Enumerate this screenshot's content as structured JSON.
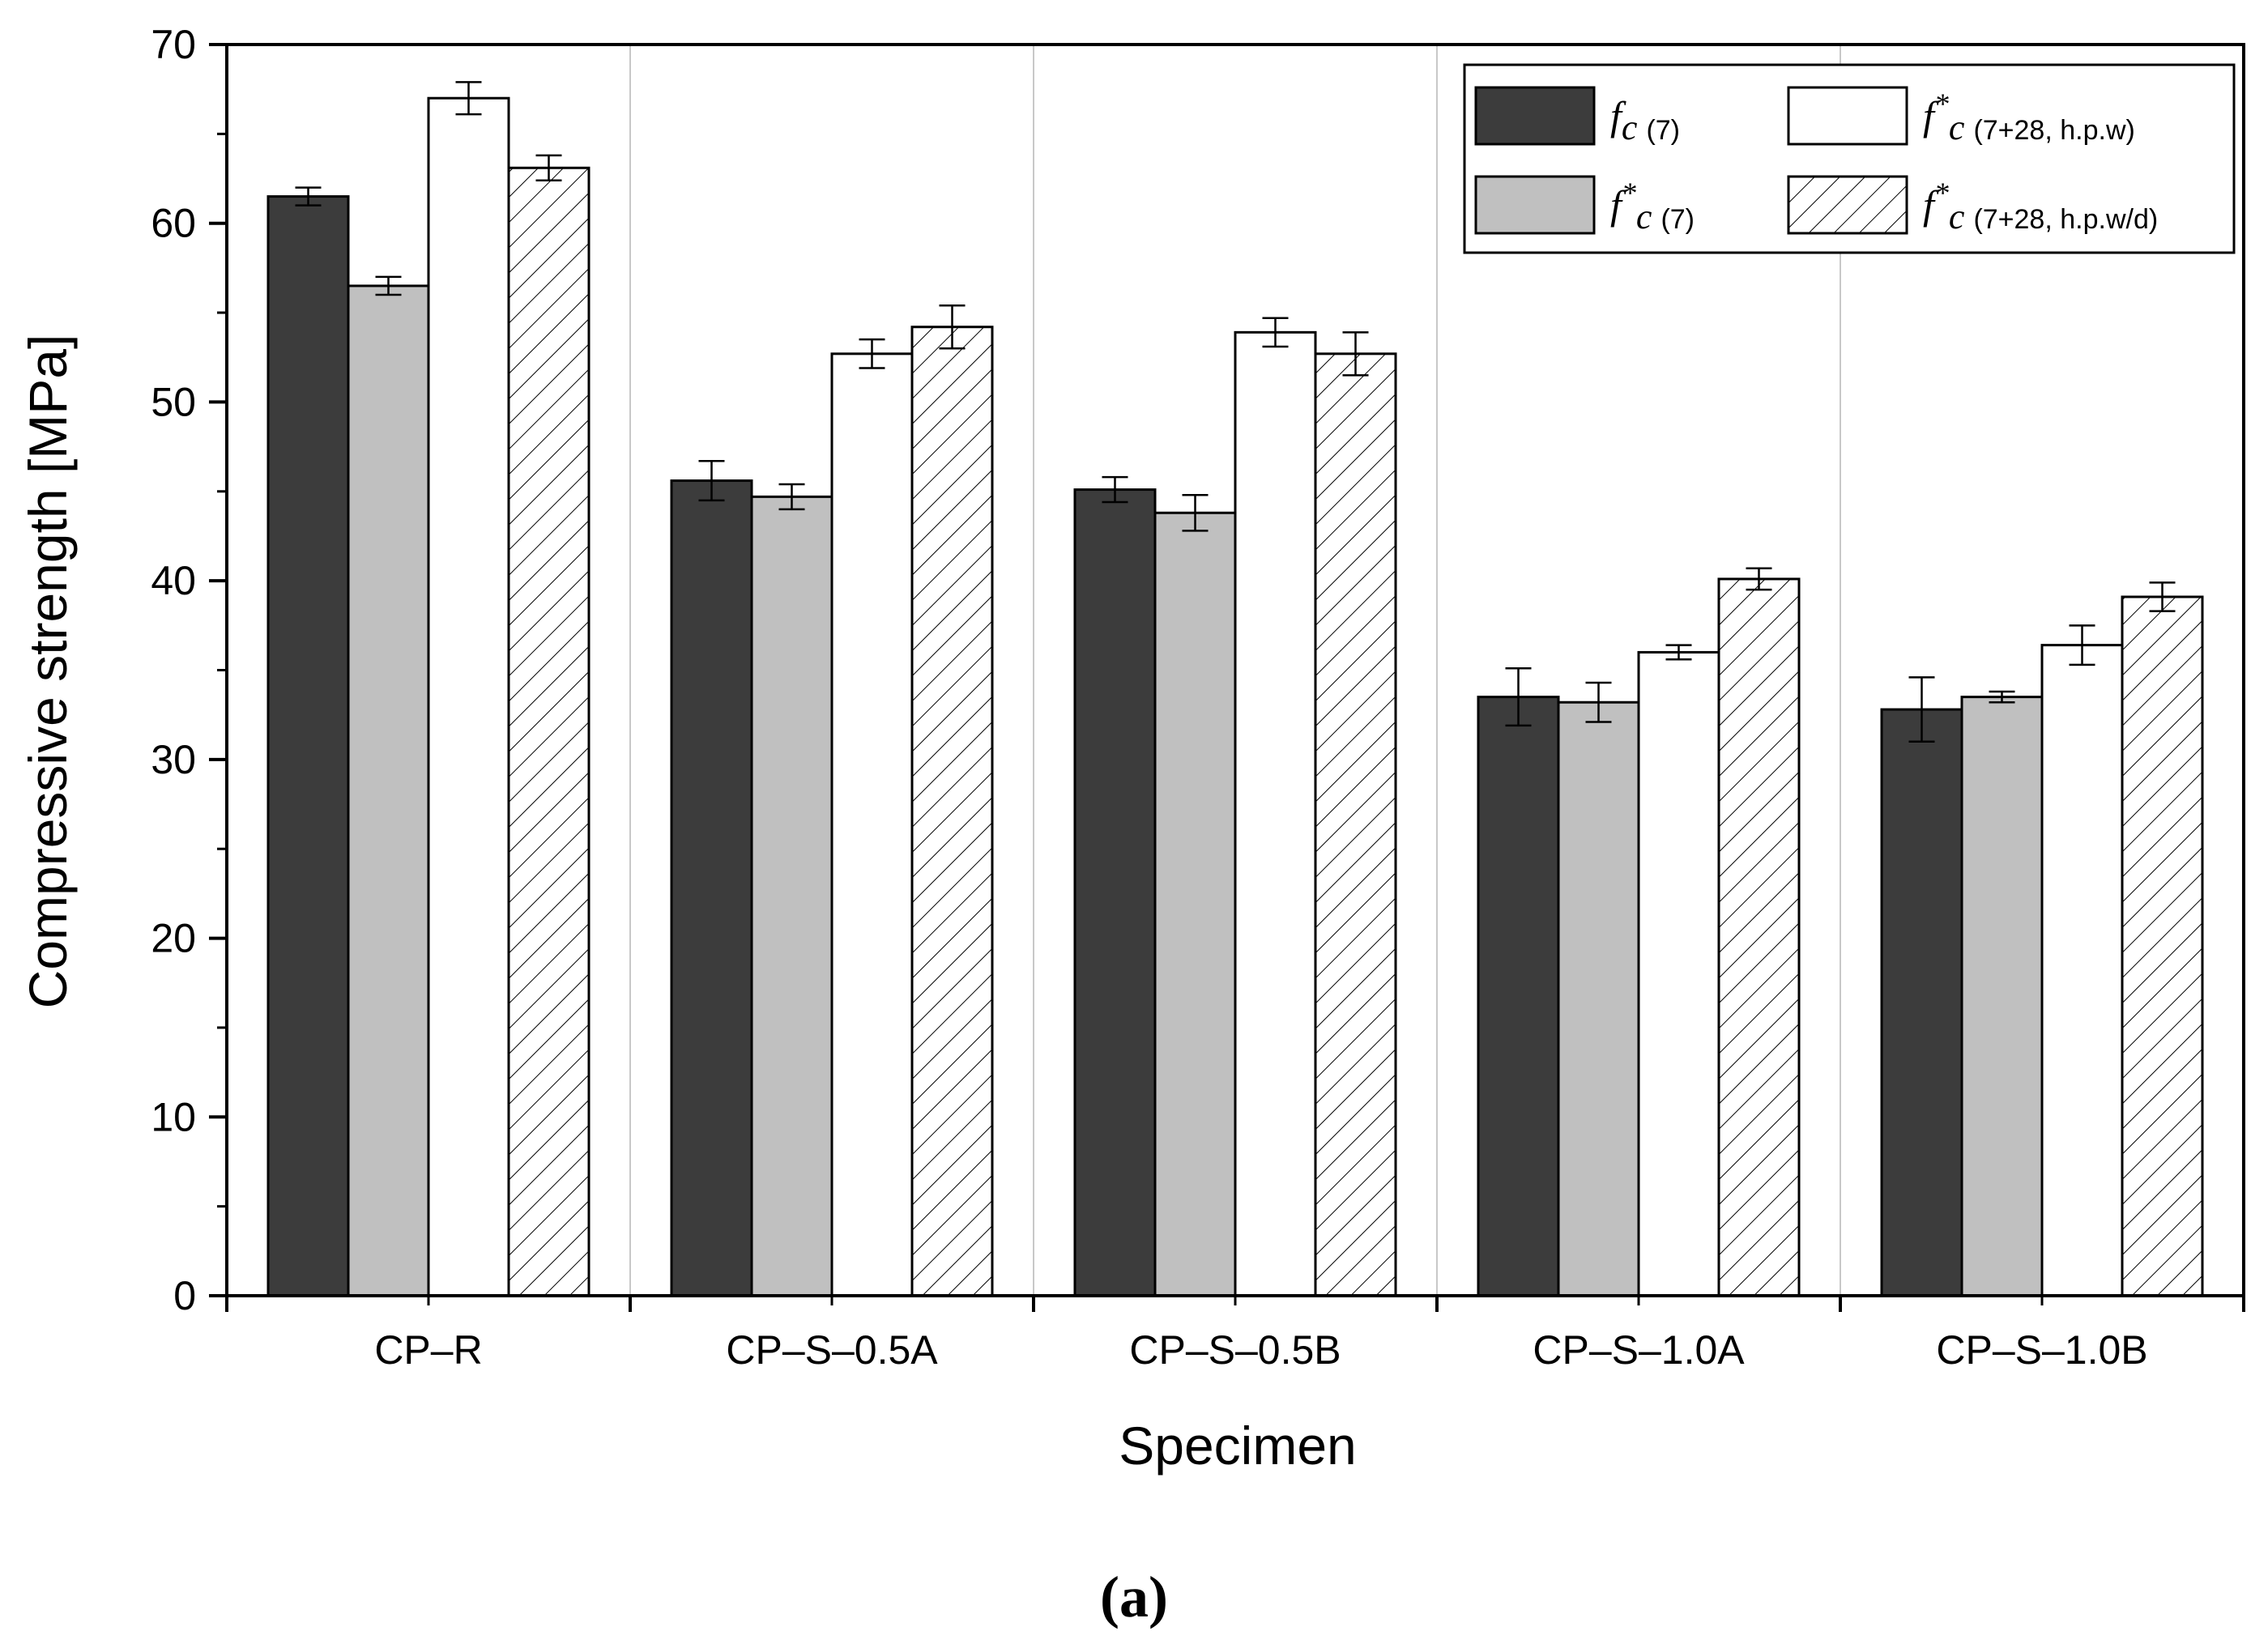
{
  "chart_data": {
    "type": "bar",
    "title": "",
    "xlabel": "Specimen",
    "ylabel": "Compressive strength [MPa]",
    "ylim": [
      0,
      70
    ],
    "yticks": [
      0,
      10,
      20,
      30,
      40,
      50,
      60,
      70
    ],
    "grid": "vertical separators between groups",
    "legend_position": "top-right",
    "categories": [
      "CP–R",
      "CP–S–0.5A",
      "CP–S–0.5B",
      "CP–S–1.0A",
      "CP–S–1.0B"
    ],
    "series": [
      {
        "name": "f c (7)",
        "label_main": "f",
        "label_sup": "",
        "label_sub": "c (7)",
        "fill": "#3c3c3c",
        "pattern": "solid",
        "values": [
          61.5,
          45.6,
          45.1,
          33.5,
          32.8
        ],
        "errors": [
          0.5,
          1.1,
          0.7,
          1.6,
          1.8
        ]
      },
      {
        "name": "f* c (7)",
        "label_main": "f",
        "label_sup": "*",
        "label_sub": "c (7)",
        "fill": "#c0c0c0",
        "pattern": "solid",
        "values": [
          56.5,
          44.7,
          43.8,
          33.2,
          33.5
        ],
        "errors": [
          0.5,
          0.7,
          1.0,
          1.1,
          0.3
        ]
      },
      {
        "name": "f* c (7+28, h.p.w)",
        "label_main": "f",
        "label_sup": "*",
        "label_sub": "c (7+28, h.p.w)",
        "fill": "#ffffff",
        "pattern": "solid",
        "values": [
          67.0,
          52.7,
          53.9,
          36.0,
          36.4
        ],
        "errors": [
          0.9,
          0.8,
          0.8,
          0.4,
          1.1
        ]
      },
      {
        "name": "f* c (7+28, h.p.w/d)",
        "label_main": "f",
        "label_sup": "*",
        "label_sub": "c (7+28, h.p.w/d)",
        "fill": "#ffffff",
        "pattern": "hatch",
        "values": [
          63.1,
          54.2,
          52.7,
          40.1,
          39.1
        ],
        "errors": [
          0.7,
          1.2,
          1.2,
          0.6,
          0.8
        ]
      }
    ]
  },
  "caption": "(a)"
}
